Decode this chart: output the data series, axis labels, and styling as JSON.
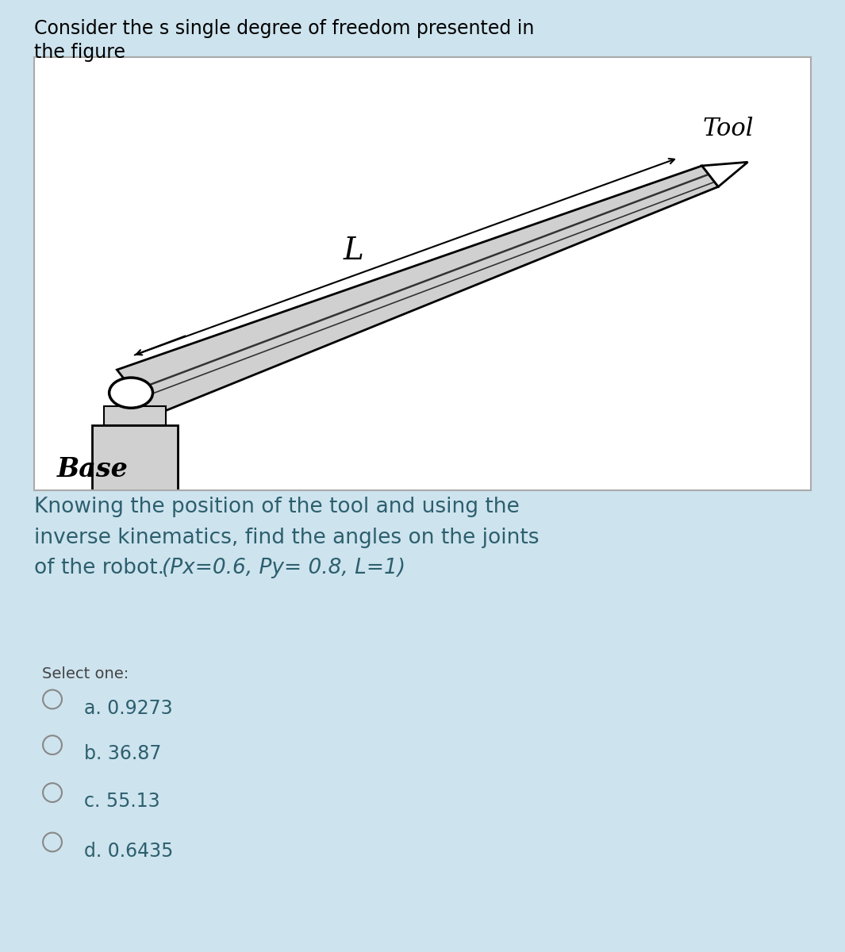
{
  "title_text1": "Consider the s single degree of freedom presented in",
  "title_text2": "the figure",
  "question_normal": "Knowing the position of the tool and using the\ninverse kinematics, find the angles on the joints\nof the robot. ",
  "question_italic": "(Px=0.6, Py= 0.8, L=1)",
  "select_label": "Select one:",
  "options": [
    "a. 0.9273",
    "b. 36.87",
    "c. 55.13",
    "d. 0.6435"
  ],
  "bg_color": "#cde3ee",
  "figure_bg": "#ffffff",
  "title_color": "#000000",
  "question_color": "#2c5f6e",
  "option_color": "#2c5f6e",
  "select_color": "#444444",
  "title_fontsize": 17,
  "question_fontsize": 19,
  "option_fontsize": 17,
  "select_fontsize": 14,
  "tool_label": "Tool",
  "L_label": "L",
  "base_label": "Base",
  "arm_color": "#d0d0d0",
  "arm_edge": "#000000",
  "base_color": "#d0d0d0"
}
